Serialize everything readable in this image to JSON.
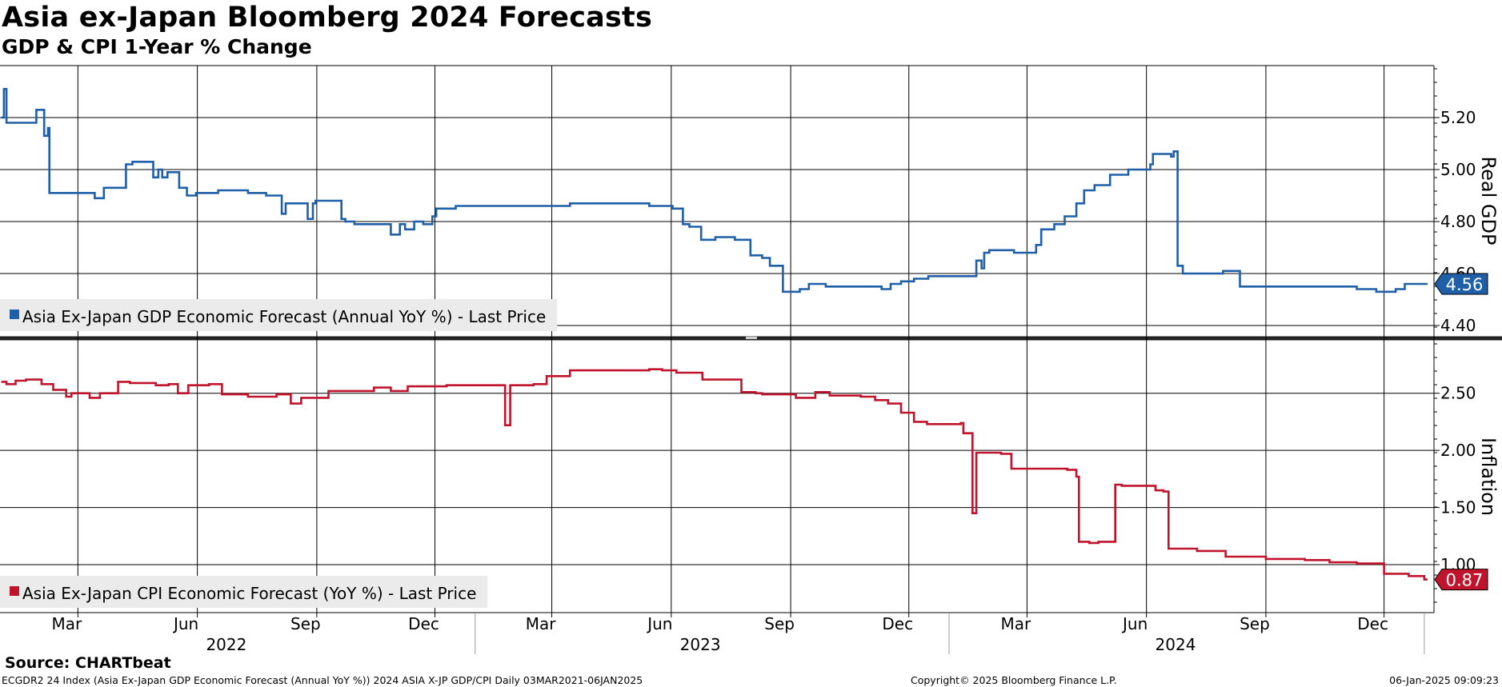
{
  "header": {
    "title": "Asia ex-Japan Bloomberg 2024 Forecasts",
    "subtitle": "GDP & CPI 1-Year % Change"
  },
  "footer": {
    "source": "Source: CHARTbeat",
    "description": "ECGDR2 24 Index (Asia Ex-Japan GDP Economic Forecast (Annual YoY %)) 2024 ASIA X-JP GDP/CPI  Daily 03MAR2021-06JAN2025",
    "copyright": "Copyright© 2025 Bloomberg Finance L.P.",
    "timestamp": "06-Jan-2025 09:09:23"
  },
  "colors": {
    "gdp": "#1f5fa8",
    "cpi": "#c0132c",
    "grid": "#000000",
    "legend_bg": "#ebebeb"
  },
  "chart_data": [
    {
      "type": "line",
      "panel": "top",
      "ylabel": "Real GDP",
      "ylim": [
        4.36,
        5.4
      ],
      "yticks": [
        "5.20",
        "5.00",
        "4.80",
        "4.60",
        "4.40"
      ],
      "ytick_values": [
        5.2,
        5.0,
        4.8,
        4.6,
        4.4
      ],
      "xlim": [
        "2021-12-31",
        "2025-01-06"
      ],
      "legend": "Asia Ex-Japan GDP Economic Forecast (Annual YoY %) - Last Price",
      "legend_position": "bottom-left",
      "last_value": "4.56",
      "grid": true,
      "series": [
        {
          "name": "Asia Ex-Japan GDP Economic Forecast (Annual YoY %)",
          "color": "#1f5fa8",
          "x": [
            "2022-01-01",
            "2022-01-03",
            "2022-01-05",
            "2022-01-20",
            "2022-01-28",
            "2022-02-03",
            "2022-02-06",
            "2022-02-07",
            "2022-02-25",
            "2022-03-14",
            "2022-03-21",
            "2022-04-07",
            "2022-04-12",
            "2022-04-28",
            "2022-05-02",
            "2022-05-05",
            "2022-05-09",
            "2022-05-18",
            "2022-05-24",
            "2022-05-31",
            "2022-06-06",
            "2022-06-17",
            "2022-07-01",
            "2022-07-10",
            "2022-07-24",
            "2022-08-05",
            "2022-08-08",
            "2022-08-25",
            "2022-08-29",
            "2022-08-31",
            "2022-09-20",
            "2022-09-23",
            "2022-09-30",
            "2022-10-21",
            "2022-10-28",
            "2022-11-04",
            "2022-11-08",
            "2022-11-15",
            "2022-11-22",
            "2022-11-29",
            "2022-12-02",
            "2022-12-08",
            "2022-12-13",
            "2022-12-17",
            "2022-12-22",
            "2023-02-15",
            "2023-03-15",
            "2023-04-15",
            "2023-05-15",
            "2023-06-02",
            "2023-06-10",
            "2023-06-15",
            "2023-06-24",
            "2023-07-05",
            "2023-07-12",
            "2023-07-20",
            "2023-08-01",
            "2023-08-10",
            "2023-08-16",
            "2023-08-26",
            "2023-09-08",
            "2023-09-15",
            "2023-09-28",
            "2023-10-20",
            "2023-11-10",
            "2023-11-17",
            "2023-11-25",
            "2023-12-05",
            "2023-12-16",
            "2023-12-29",
            "2024-01-15",
            "2024-01-22",
            "2024-01-26",
            "2024-01-28",
            "2024-02-01",
            "2024-02-20",
            "2024-03-08",
            "2024-03-12",
            "2024-03-22",
            "2024-03-30",
            "2024-04-08",
            "2024-04-14",
            "2024-04-22",
            "2024-05-04",
            "2024-05-18",
            "2024-05-26",
            "2024-06-04",
            "2024-06-06",
            "2024-06-20",
            "2024-06-22",
            "2024-06-25",
            "2024-06-29",
            "2024-07-30",
            "2024-08-05",
            "2024-08-12",
            "2024-09-20",
            "2024-10-10",
            "2024-10-20",
            "2024-11-10",
            "2024-11-25",
            "2024-12-05",
            "2024-12-10",
            "2024-12-17",
            "2024-12-30"
          ],
          "y": [
            5.2,
            5.31,
            5.18,
            5.18,
            5.23,
            5.13,
            5.16,
            4.91,
            4.91,
            4.89,
            4.93,
            5.02,
            5.03,
            4.97,
            5.0,
            4.97,
            4.99,
            4.93,
            4.9,
            4.91,
            4.91,
            4.92,
            4.92,
            4.91,
            4.9,
            4.83,
            4.87,
            4.81,
            4.87,
            4.88,
            4.81,
            4.8,
            4.79,
            4.79,
            4.75,
            4.79,
            4.77,
            4.8,
            4.79,
            4.82,
            4.85,
            4.85,
            4.85,
            4.86,
            4.86,
            4.86,
            4.87,
            4.87,
            4.86,
            4.85,
            4.79,
            4.78,
            4.73,
            4.74,
            4.74,
            4.73,
            4.67,
            4.66,
            4.63,
            4.53,
            4.54,
            4.56,
            4.55,
            4.55,
            4.54,
            4.56,
            4.57,
            4.58,
            4.59,
            4.59,
            4.59,
            4.65,
            4.62,
            4.68,
            4.69,
            4.68,
            4.71,
            4.77,
            4.79,
            4.82,
            4.87,
            4.92,
            4.94,
            4.98,
            5.0,
            5.0,
            5.02,
            5.06,
            5.05,
            5.07,
            4.63,
            4.6,
            4.61,
            4.61,
            4.55,
            4.55,
            4.55,
            4.55,
            4.54,
            4.53,
            4.53,
            4.54,
            4.56,
            4.56
          ]
        }
      ]
    },
    {
      "type": "line",
      "panel": "bottom",
      "ylabel": "Inflation",
      "ylim": [
        0.58,
        2.96
      ],
      "yticks": [
        "2.50",
        "2.00",
        "1.50",
        "1.00"
      ],
      "ytick_values": [
        2.5,
        2.0,
        1.5,
        1.0
      ],
      "xlim": [
        "2021-12-31",
        "2025-01-06"
      ],
      "legend": "Asia Ex-Japan CPI Economic Forecast (YoY %) - Last Price",
      "legend_position": "bottom-left",
      "last_value": "0.87",
      "grid": true,
      "series": [
        {
          "name": "Asia Ex-Japan CPI Economic Forecast (YoY %)",
          "color": "#c0132c",
          "x": [
            "2022-01-01",
            "2022-01-05",
            "2022-01-12",
            "2022-01-20",
            "2022-02-01",
            "2022-02-10",
            "2022-02-20",
            "2022-02-24",
            "2022-03-10",
            "2022-03-18",
            "2022-04-01",
            "2022-04-10",
            "2022-04-30",
            "2022-05-10",
            "2022-05-17",
            "2022-05-25",
            "2022-06-10",
            "2022-06-20",
            "2022-07-10",
            "2022-08-01",
            "2022-08-12",
            "2022-08-20",
            "2022-09-10",
            "2022-10-15",
            "2022-10-28",
            "2022-11-10",
            "2022-12-10",
            "2023-01-10",
            "2023-01-24",
            "2023-01-28",
            "2023-02-15",
            "2023-02-25",
            "2023-03-15",
            "2023-04-15",
            "2023-05-15",
            "2023-05-25",
            "2023-06-05",
            "2023-06-25",
            "2023-07-05",
            "2023-07-25",
            "2023-08-05",
            "2023-08-10",
            "2023-09-05",
            "2023-09-20",
            "2023-10-01",
            "2023-10-25",
            "2023-11-05",
            "2023-11-15",
            "2023-11-25",
            "2023-12-05",
            "2023-12-15",
            "2024-01-10",
            "2024-01-12",
            "2024-01-19",
            "2024-01-22",
            "2024-02-10",
            "2024-02-18",
            "2024-03-15",
            "2024-04-01",
            "2024-04-08",
            "2024-04-10",
            "2024-04-18",
            "2024-04-25",
            "2024-05-08",
            "2024-05-13",
            "2024-06-08",
            "2024-06-14",
            "2024-06-18",
            "2024-07-10",
            "2024-08-01",
            "2024-09-01",
            "2024-10-01",
            "2024-10-20",
            "2024-11-10",
            "2024-12-01",
            "2024-12-20",
            "2025-01-01"
          ],
          "y": [
            2.6,
            2.58,
            2.61,
            2.62,
            2.58,
            2.53,
            2.47,
            2.5,
            2.46,
            2.5,
            2.6,
            2.59,
            2.57,
            2.58,
            2.5,
            2.57,
            2.58,
            2.49,
            2.47,
            2.49,
            2.41,
            2.46,
            2.52,
            2.55,
            2.52,
            2.56,
            2.57,
            2.57,
            2.22,
            2.57,
            2.58,
            2.65,
            2.7,
            2.7,
            2.71,
            2.7,
            2.68,
            2.62,
            2.62,
            2.51,
            2.5,
            2.49,
            2.46,
            2.51,
            2.48,
            2.47,
            2.44,
            2.41,
            2.33,
            2.25,
            2.23,
            2.24,
            2.15,
            1.45,
            1.98,
            1.97,
            1.84,
            1.84,
            1.83,
            1.77,
            1.2,
            1.19,
            1.2,
            1.7,
            1.69,
            1.65,
            1.64,
            1.14,
            1.12,
            1.07,
            1.05,
            1.04,
            1.02,
            1.01,
            0.92,
            0.9,
            0.87
          ]
        }
      ]
    }
  ],
  "x_axis": {
    "month_ticks": [
      {
        "label": "Mar",
        "date": "2022-03-01"
      },
      {
        "label": "Jun",
        "date": "2022-06-01"
      },
      {
        "label": "Sep",
        "date": "2022-09-01"
      },
      {
        "label": "Dec",
        "date": "2022-12-01"
      },
      {
        "label": "Mar",
        "date": "2023-03-01"
      },
      {
        "label": "Jun",
        "date": "2023-06-01"
      },
      {
        "label": "Sep",
        "date": "2023-09-01"
      },
      {
        "label": "Dec",
        "date": "2023-12-01"
      },
      {
        "label": "Mar",
        "date": "2024-03-01"
      },
      {
        "label": "Jun",
        "date": "2024-06-01"
      },
      {
        "label": "Sep",
        "date": "2024-09-01"
      },
      {
        "label": "Dec",
        "date": "2024-12-01"
      }
    ],
    "year_labels": [
      {
        "label": "2022",
        "date": "2022-07-02"
      },
      {
        "label": "2023",
        "date": "2023-07-02"
      },
      {
        "label": "2024",
        "date": "2024-07-02"
      }
    ],
    "year_boundaries": [
      "2023-01-01",
      "2024-01-01",
      "2025-01-01"
    ]
  }
}
